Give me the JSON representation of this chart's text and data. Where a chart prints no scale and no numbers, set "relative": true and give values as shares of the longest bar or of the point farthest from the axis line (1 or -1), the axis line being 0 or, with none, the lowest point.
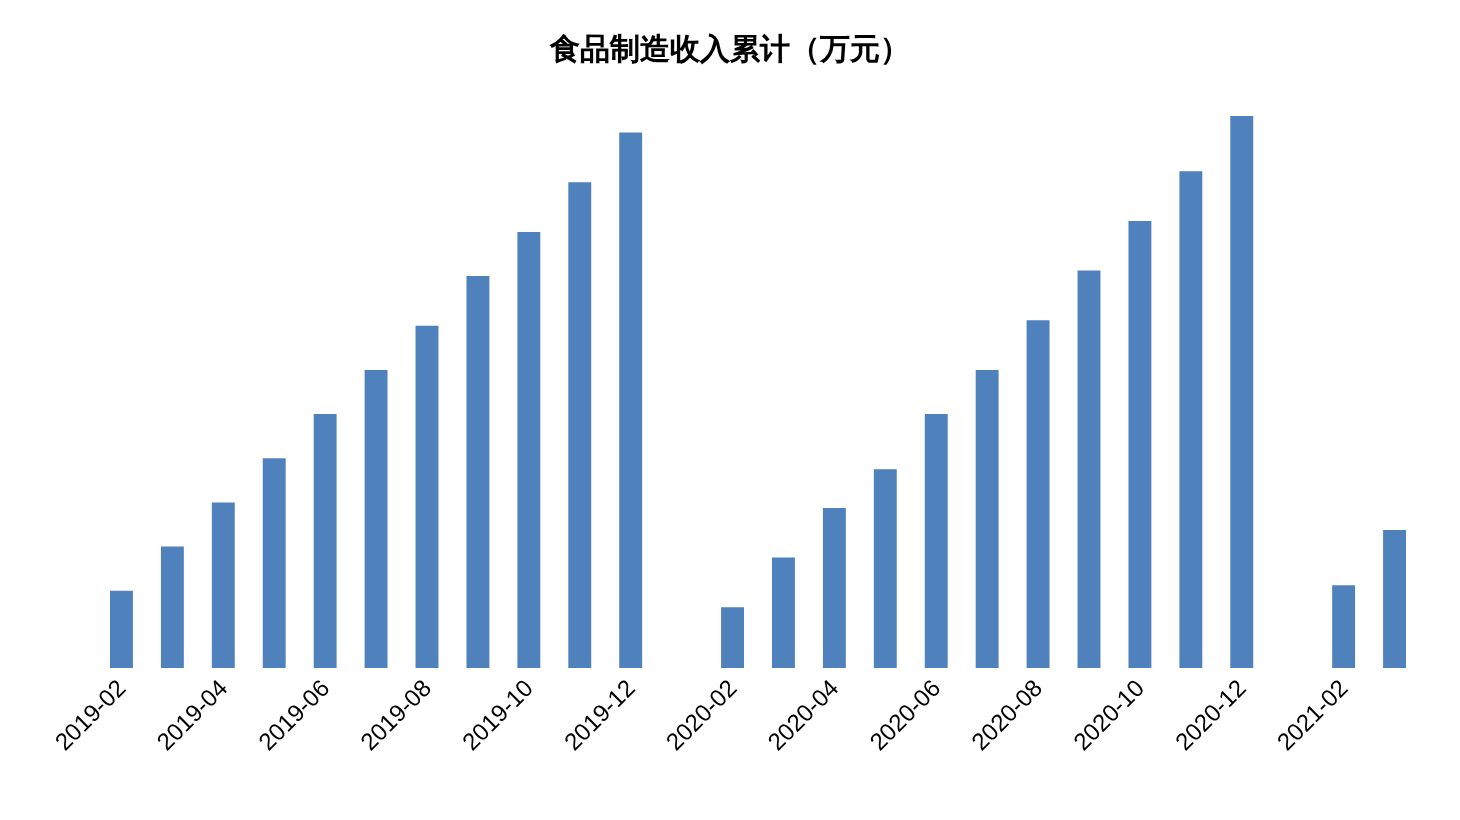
{
  "chart_data": {
    "type": "bar",
    "title": "食品制造收入累计（万元）",
    "relative": true,
    "categories": [
      "2019-02",
      null,
      "2019-04",
      null,
      "2019-06",
      null,
      "2019-08",
      null,
      "2019-10",
      null,
      "2019-12",
      null,
      "2020-02",
      null,
      "2020-04",
      null,
      "2020-06",
      null,
      "2020-08",
      null,
      "2020-10",
      null,
      "2020-12",
      null,
      "2021-02",
      null
    ],
    "series": [
      {
        "color": "#4f81bd",
        "values": [
          0.14,
          0.22,
          0.3,
          0.38,
          0.46,
          0.54,
          0.62,
          0.71,
          0.79,
          0.88,
          0.97,
          null,
          0.11,
          0.2,
          0.29,
          0.36,
          0.46,
          0.54,
          0.63,
          0.72,
          0.81,
          0.9,
          1,
          null,
          0.15,
          0.25
        ]
      }
    ]
  }
}
